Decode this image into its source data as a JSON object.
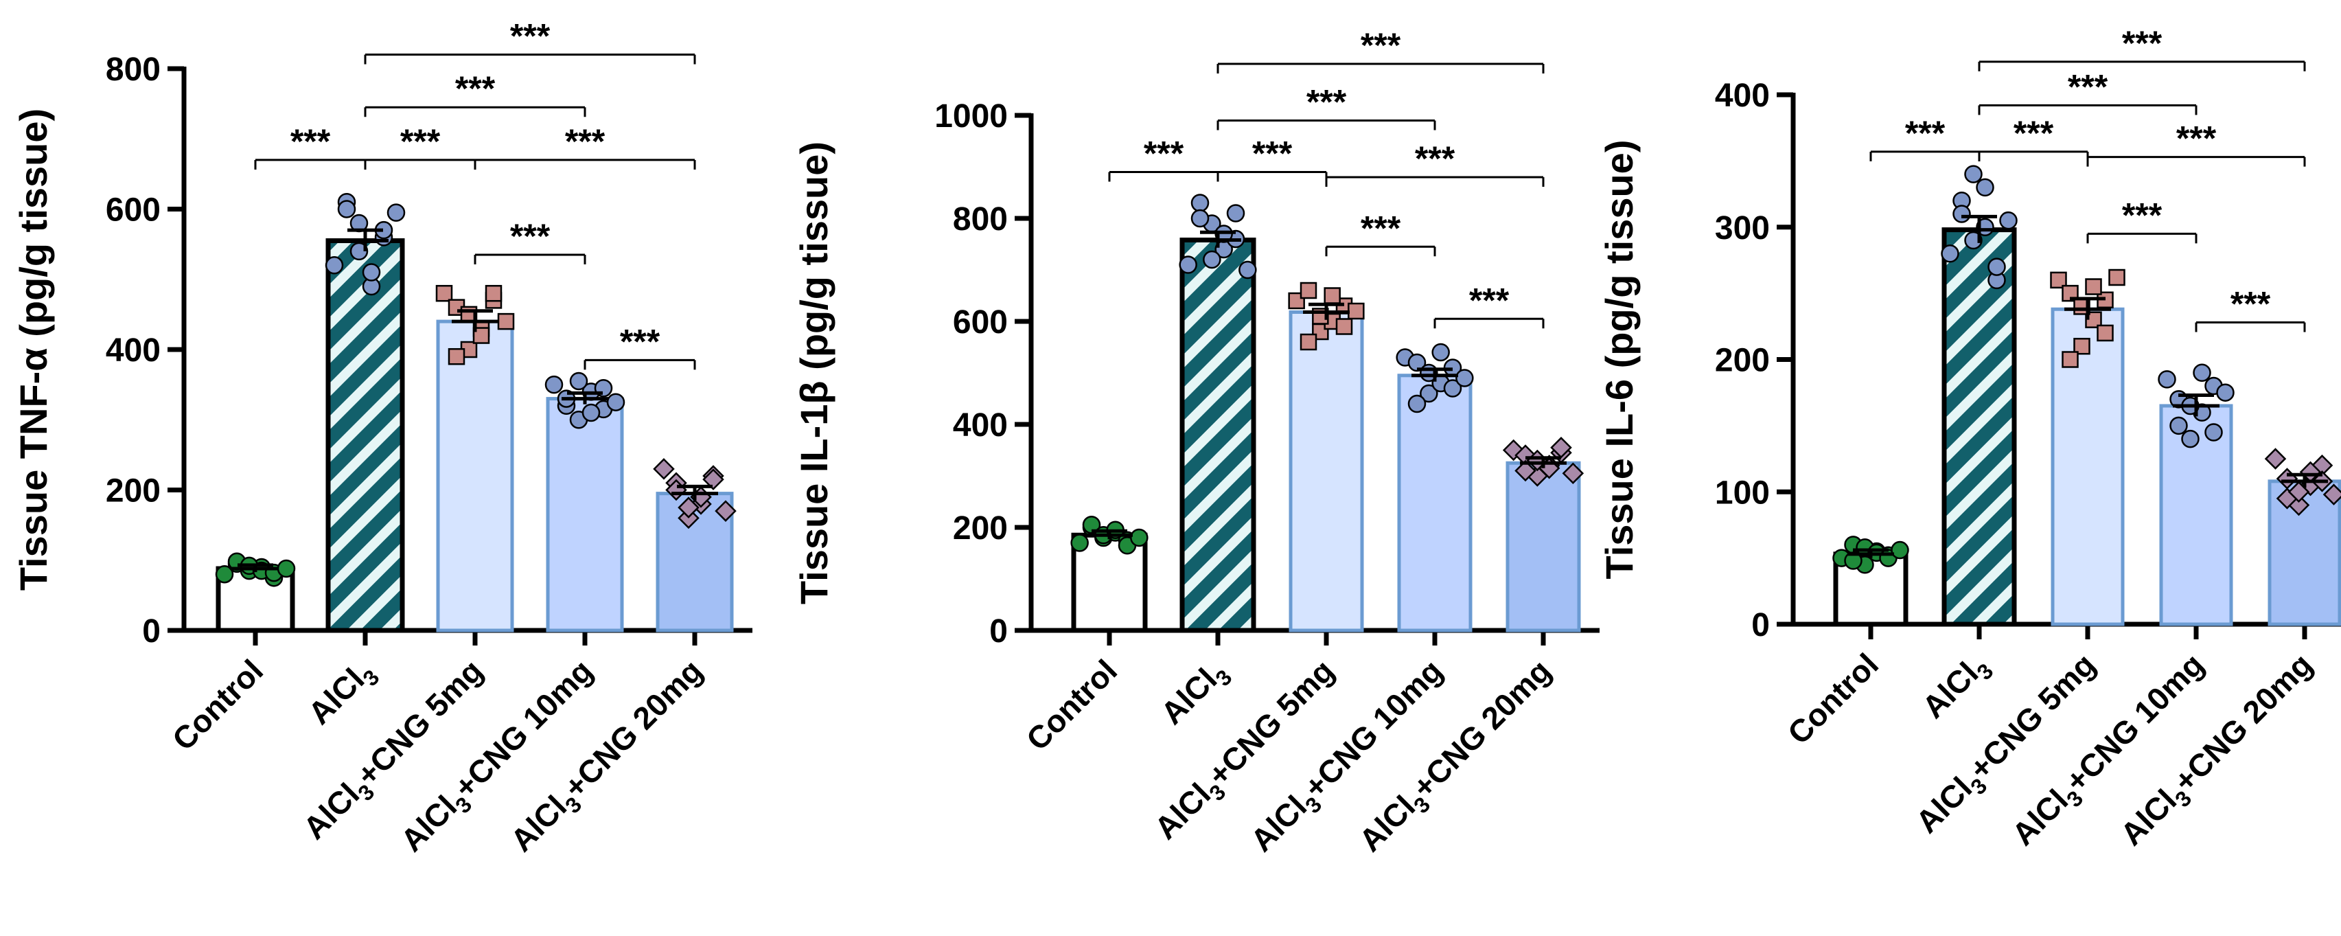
{
  "chart_data": [
    {
      "type": "bar",
      "title": "",
      "ylabel": "Tissue TNF-α (pg/g tissue)",
      "ylim": [
        0,
        800
      ],
      "yticks": [
        0,
        200,
        400,
        600,
        800
      ],
      "categories": [
        {
          "prefix": "Control",
          "sub": "",
          "suffix": ""
        },
        {
          "prefix": "AlCl",
          "sub": "3",
          "suffix": ""
        },
        {
          "prefix": "AlCl",
          "sub": "3",
          "suffix": "+CNG 5mg"
        },
        {
          "prefix": "AlCl",
          "sub": "3",
          "suffix": "+CNG 10mg"
        },
        {
          "prefix": "AlCl",
          "sub": "3",
          "suffix": "+CNG 20mg"
        }
      ],
      "values": [
        88,
        555,
        440,
        330,
        195
      ],
      "sem": [
        5,
        15,
        15,
        8,
        10
      ],
      "points": [
        [
          80,
          95,
          85,
          90,
          75,
          98,
          92,
          85,
          82,
          88
        ],
        [
          520,
          610,
          580,
          490,
          560,
          600,
          540,
          510,
          570,
          595
        ],
        [
          480,
          460,
          400,
          430,
          470,
          390,
          450,
          420,
          480,
          440
        ],
        [
          350,
          320,
          300,
          340,
          315,
          330,
          355,
          310,
          345,
          325
        ],
        [
          230,
          210,
          160,
          180,
          220,
          200,
          175,
          190,
          215,
          170
        ],
        []
      ],
      "significance": [
        {
          "from": 0,
          "to": 1,
          "value": 670,
          "label": "***"
        },
        {
          "from": 1,
          "to": 2,
          "value": 670,
          "label": "***"
        },
        {
          "from": 2,
          "to": 4,
          "value": 670,
          "label": "***"
        },
        {
          "from": 1,
          "to": 3,
          "value": 745,
          "label": "***"
        },
        {
          "from": 1,
          "to": 4,
          "value": 820,
          "label": "***"
        },
        {
          "from": 2,
          "to": 3,
          "value": 535,
          "label": "***"
        },
        {
          "from": 3,
          "to": 4,
          "value": 385,
          "label": "***"
        }
      ]
    },
    {
      "type": "bar",
      "title": "",
      "ylabel": "Tissue IL-1β (pg/g tissue)",
      "ylim": [
        0,
        1000
      ],
      "yticks": [
        0,
        200,
        400,
        600,
        800,
        1000
      ],
      "categories": [
        {
          "prefix": "Control",
          "sub": "",
          "suffix": ""
        },
        {
          "prefix": "AlCl",
          "sub": "3",
          "suffix": ""
        },
        {
          "prefix": "AlCl",
          "sub": "3",
          "suffix": "+CNG 5mg"
        },
        {
          "prefix": "AlCl",
          "sub": "3",
          "suffix": "+CNG 10mg"
        },
        {
          "prefix": "AlCl",
          "sub": "3",
          "suffix": "+CNG 20mg"
        }
      ],
      "values": [
        185,
        758,
        618,
        495,
        325
      ],
      "sem": [
        8,
        15,
        15,
        12,
        10
      ],
      "points": [
        [
          170,
          200,
          180,
          190,
          175,
          205,
          185,
          195,
          165,
          180
        ],
        [
          710,
          830,
          790,
          740,
          760,
          800,
          720,
          770,
          810,
          700
        ],
        [
          640,
          660,
          580,
          600,
          630,
          560,
          610,
          650,
          590,
          620
        ],
        [
          530,
          520,
          460,
          480,
          510,
          440,
          500,
          540,
          470,
          490
        ],
        [
          350,
          340,
          300,
          320,
          345,
          310,
          330,
          315,
          355,
          305
        ],
        []
      ],
      "significance": [
        {
          "from": 0,
          "to": 1,
          "value": 890,
          "label": "***"
        },
        {
          "from": 1,
          "to": 2,
          "value": 890,
          "label": "***"
        },
        {
          "from": 2,
          "to": 4,
          "value": 880,
          "label": "***"
        },
        {
          "from": 1,
          "to": 3,
          "value": 990,
          "label": "***"
        },
        {
          "from": 1,
          "to": 4,
          "value": 1100,
          "label": "***"
        },
        {
          "from": 2,
          "to": 3,
          "value": 745,
          "label": "***"
        },
        {
          "from": 3,
          "to": 4,
          "value": 605,
          "label": "***"
        }
      ]
    },
    {
      "type": "bar",
      "title": "",
      "ylabel": "Tissue IL-6 (pg/g tissue)",
      "ylim": [
        0,
        400
      ],
      "yticks": [
        0,
        100,
        200,
        300,
        400
      ],
      "categories": [
        {
          "prefix": "Control",
          "sub": "",
          "suffix": ""
        },
        {
          "prefix": "AlCl",
          "sub": "3",
          "suffix": ""
        },
        {
          "prefix": "AlCl",
          "sub": "3",
          "suffix": "+CNG 5mg"
        },
        {
          "prefix": "AlCl",
          "sub": "3",
          "suffix": "+CNG 10mg"
        },
        {
          "prefix": "AlCl",
          "sub": "3",
          "suffix": "+CNG 20mg"
        }
      ],
      "values": [
        53,
        298,
        238,
        165,
        108
      ],
      "sem": [
        3,
        10,
        8,
        8,
        5
      ],
      "points": [
        [
          50,
          60,
          45,
          55,
          52,
          48,
          58,
          54,
          50,
          56
        ],
        [
          280,
          320,
          340,
          300,
          260,
          310,
          290,
          330,
          270,
          305
        ],
        [
          260,
          250,
          210,
          230,
          245,
          200,
          240,
          255,
          220,
          262
        ],
        [
          185,
          170,
          140,
          160,
          180,
          150,
          165,
          190,
          145,
          175
        ],
        [
          125,
          110,
          90,
          105,
          120,
          95,
          100,
          115,
          108,
          98
        ],
        []
      ],
      "significance": [
        {
          "from": 0,
          "to": 1,
          "value": 357,
          "label": "***"
        },
        {
          "from": 1,
          "to": 2,
          "value": 357,
          "label": "***"
        },
        {
          "from": 2,
          "to": 4,
          "value": 353,
          "label": "***"
        },
        {
          "from": 1,
          "to": 3,
          "value": 392,
          "label": "***"
        },
        {
          "from": 1,
          "to": 4,
          "value": 425,
          "label": "***"
        },
        {
          "from": 2,
          "to": 3,
          "value": 295,
          "label": "***"
        },
        {
          "from": 3,
          "to": 4,
          "value": 228,
          "label": "***"
        }
      ]
    }
  ],
  "styles": {
    "bar_fills": [
      "#ffffff",
      "pattern",
      "#d6e4ff",
      "#bfd3ff",
      "#a3bff5"
    ],
    "bar_strokes": [
      "#000000",
      "#000000",
      "#6b9bd2",
      "#6b9bd2",
      "#6b9bd2"
    ],
    "hatch_colors": [
      "#12606b",
      "#e6f6f6"
    ],
    "point_fills": [
      "#1f8a3a",
      "#7f96c8",
      "#c98a86",
      "#7f96c8",
      "#a88aa9"
    ],
    "point_shapes": [
      "circle",
      "circle",
      "square",
      "circle",
      "diamond"
    ],
    "axis_color": "#000000"
  }
}
